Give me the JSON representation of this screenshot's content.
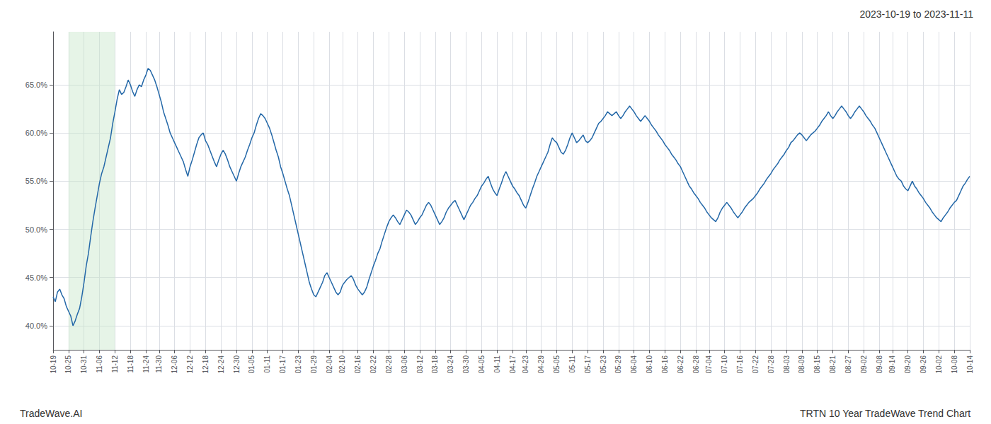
{
  "chart_data": {
    "type": "line",
    "title": "2023-10-19 to 2023-11-11",
    "annotations": [
      "TradeWave.AI",
      "TRTN 10 Year TradeWave Trend Chart"
    ],
    "color": "#2468a8",
    "grid": true,
    "spans": [
      {
        "from": "10-25",
        "to": "11-12",
        "color": "#c8e6c9"
      }
    ],
    "ylim": [
      0.375,
      0.705
    ],
    "yticks": [
      {
        "value": 0.4,
        "label": "40.0%"
      },
      {
        "value": 0.45,
        "label": "45.0%"
      },
      {
        "value": 0.5,
        "label": "50.0%"
      },
      {
        "value": 0.55,
        "label": "55.0%"
      },
      {
        "value": 0.6,
        "label": "60.0%"
      },
      {
        "value": 0.65,
        "label": "65.0%"
      }
    ],
    "categories": [
      "10-19",
      null,
      null,
      null,
      null,
      null,
      null,
      "10-25",
      null,
      null,
      null,
      null,
      null,
      null,
      "10-31",
      null,
      null,
      null,
      null,
      null,
      null,
      "11-06",
      null,
      null,
      null,
      null,
      null,
      null,
      "11-12",
      null,
      null,
      null,
      null,
      null,
      null,
      "11-18",
      null,
      null,
      null,
      null,
      null,
      null,
      "11-24",
      null,
      null,
      null,
      null,
      null,
      "11-30",
      null,
      null,
      null,
      null,
      null,
      null,
      "12-06",
      null,
      null,
      null,
      null,
      null,
      null,
      "12-12",
      null,
      null,
      null,
      null,
      null,
      null,
      "12-18",
      null,
      null,
      null,
      null,
      null,
      null,
      "12-24",
      null,
      null,
      null,
      null,
      null,
      null,
      "12-30",
      null,
      null,
      null,
      null,
      null,
      null,
      "01-05",
      null,
      null,
      null,
      null,
      null,
      null,
      "01-11",
      null,
      null,
      null,
      null,
      null,
      null,
      "01-17",
      null,
      null,
      null,
      null,
      null,
      null,
      "01-23",
      null,
      null,
      null,
      null,
      null,
      null,
      "01-29",
      null,
      null,
      null,
      null,
      null,
      null,
      "02-04",
      null,
      null,
      null,
      null,
      null,
      "02-10",
      null,
      null,
      null,
      null,
      null,
      null,
      "02-16",
      null,
      null,
      null,
      null,
      null,
      null,
      "02-22",
      null,
      null,
      null,
      null,
      null,
      null,
      "02-28",
      null,
      null,
      null,
      null,
      null,
      null,
      "03-06",
      null,
      null,
      null,
      null,
      null,
      null,
      "03-12",
      null,
      null,
      null,
      null,
      null,
      null,
      "03-18",
      null,
      null,
      null,
      null,
      null,
      null,
      "03-24",
      null,
      null,
      null,
      null,
      null,
      null,
      "03-30",
      null,
      null,
      null,
      null,
      null,
      null,
      "04-05",
      null,
      null,
      null,
      null,
      null,
      null,
      "04-11",
      null,
      null,
      null,
      null,
      null,
      null,
      "04-17",
      null,
      null,
      null,
      null,
      null,
      "04-23",
      null,
      null,
      null,
      null,
      null,
      null,
      "04-29",
      null,
      null,
      null,
      null,
      null,
      null,
      "05-05",
      null,
      null,
      null,
      null,
      null,
      null,
      "05-11",
      null,
      null,
      null,
      null,
      null,
      null,
      "05-17",
      null,
      null,
      null,
      null,
      null,
      null,
      "05-23",
      null,
      null,
      null,
      null,
      null,
      null,
      "05-29",
      null,
      null,
      null,
      null,
      null,
      null,
      "06-04",
      null,
      null,
      null,
      null,
      null,
      null,
      "06-10",
      null,
      null,
      null,
      null,
      null,
      null,
      "06-16",
      null,
      null,
      null,
      null,
      null,
      null,
      "06-22",
      null,
      null,
      null,
      null,
      null,
      null,
      "06-28",
      null,
      null,
      null,
      null,
      null,
      "07-04",
      null,
      null,
      null,
      null,
      null,
      null,
      "07-10",
      null,
      null,
      null,
      null,
      null,
      null,
      "07-16",
      null,
      null,
      null,
      null,
      null,
      null,
      "07-22",
      null,
      null,
      null,
      null,
      null,
      null,
      "07-28",
      null,
      null,
      null,
      null,
      null,
      null,
      "08-03",
      null,
      null,
      null,
      null,
      null,
      null,
      "08-09",
      null,
      null,
      null,
      null,
      null,
      null,
      "08-15",
      null,
      null,
      null,
      null,
      null,
      null,
      "08-21",
      null,
      null,
      null,
      null,
      null,
      null,
      "08-27",
      null,
      null,
      null,
      null,
      null,
      null,
      "09-02",
      null,
      null,
      null,
      null,
      null,
      null,
      "09-08",
      null,
      null,
      null,
      null,
      null,
      "09-14",
      null,
      null,
      null,
      null,
      null,
      null,
      "09-20",
      null,
      null,
      null,
      null,
      null,
      null,
      "09-26",
      null,
      null,
      null,
      null,
      null,
      null,
      "10-02",
      null,
      null,
      null,
      null,
      null,
      null,
      "10-08",
      null,
      null,
      null,
      null,
      null,
      null,
      "10-14"
    ],
    "values": [
      0.43,
      0.425,
      0.435,
      0.438,
      0.432,
      0.428,
      0.42,
      0.415,
      0.41,
      0.4,
      0.405,
      0.412,
      0.418,
      0.43,
      0.445,
      0.462,
      0.475,
      0.492,
      0.508,
      0.522,
      0.535,
      0.548,
      0.558,
      0.565,
      0.575,
      0.585,
      0.595,
      0.61,
      0.622,
      0.635,
      0.645,
      0.64,
      0.642,
      0.648,
      0.655,
      0.65,
      0.643,
      0.638,
      0.645,
      0.65,
      0.648,
      0.655,
      0.66,
      0.667,
      0.665,
      0.66,
      0.655,
      0.648,
      0.64,
      0.632,
      0.622,
      0.615,
      0.608,
      0.6,
      0.595,
      0.59,
      0.585,
      0.58,
      0.575,
      0.57,
      0.562,
      0.555,
      0.565,
      0.572,
      0.58,
      0.588,
      0.595,
      0.598,
      0.6,
      0.592,
      0.588,
      0.582,
      0.576,
      0.57,
      0.565,
      0.572,
      0.578,
      0.582,
      0.578,
      0.572,
      0.565,
      0.56,
      0.555,
      0.55,
      0.558,
      0.565,
      0.57,
      0.575,
      0.582,
      0.588,
      0.595,
      0.6,
      0.608,
      0.615,
      0.62,
      0.618,
      0.615,
      0.61,
      0.605,
      0.598,
      0.59,
      0.582,
      0.575,
      0.565,
      0.558,
      0.55,
      0.542,
      0.535,
      0.525,
      0.515,
      0.505,
      0.495,
      0.485,
      0.475,
      0.465,
      0.455,
      0.445,
      0.438,
      0.432,
      0.43,
      0.435,
      0.44,
      0.445,
      0.452,
      0.455,
      0.45,
      0.445,
      0.44,
      0.435,
      0.432,
      0.435,
      0.442,
      0.445,
      0.448,
      0.45,
      0.452,
      0.448,
      0.442,
      0.438,
      0.435,
      0.432,
      0.435,
      0.44,
      0.448,
      0.455,
      0.462,
      0.468,
      0.475,
      0.48,
      0.488,
      0.495,
      0.502,
      0.508,
      0.512,
      0.515,
      0.512,
      0.508,
      0.505,
      0.51,
      0.515,
      0.52,
      0.518,
      0.515,
      0.51,
      0.505,
      0.508,
      0.512,
      0.515,
      0.52,
      0.525,
      0.528,
      0.525,
      0.52,
      0.515,
      0.51,
      0.505,
      0.508,
      0.512,
      0.518,
      0.522,
      0.525,
      0.528,
      0.53,
      0.525,
      0.52,
      0.515,
      0.51,
      0.515,
      0.52,
      0.525,
      0.528,
      0.532,
      0.535,
      0.54,
      0.545,
      0.548,
      0.552,
      0.555,
      0.548,
      0.542,
      0.538,
      0.535,
      0.542,
      0.548,
      0.555,
      0.56,
      0.555,
      0.55,
      0.545,
      0.542,
      0.538,
      0.535,
      0.53,
      0.525,
      0.522,
      0.528,
      0.535,
      0.542,
      0.548,
      0.555,
      0.56,
      0.565,
      0.57,
      0.575,
      0.58,
      0.588,
      0.595,
      0.592,
      0.59,
      0.585,
      0.58,
      0.578,
      0.582,
      0.588,
      0.595,
      0.6,
      0.595,
      0.59,
      0.592,
      0.595,
      0.598,
      0.592,
      0.59,
      0.592,
      0.595,
      0.6,
      0.605,
      0.61,
      0.612,
      0.615,
      0.618,
      0.622,
      0.62,
      0.618,
      0.62,
      0.622,
      0.618,
      0.615,
      0.618,
      0.622,
      0.625,
      0.628,
      0.625,
      0.622,
      0.618,
      0.615,
      0.612,
      0.615,
      0.618,
      0.615,
      0.612,
      0.608,
      0.605,
      0.602,
      0.598,
      0.595,
      0.592,
      0.588,
      0.585,
      0.582,
      0.578,
      0.575,
      0.572,
      0.568,
      0.565,
      0.56,
      0.555,
      0.55,
      0.545,
      0.542,
      0.538,
      0.535,
      0.532,
      0.528,
      0.525,
      0.522,
      0.518,
      0.515,
      0.512,
      0.51,
      0.508,
      0.512,
      0.518,
      0.522,
      0.525,
      0.528,
      0.525,
      0.522,
      0.518,
      0.515,
      0.512,
      0.515,
      0.518,
      0.522,
      0.525,
      0.528,
      0.53,
      0.532,
      0.535,
      0.538,
      0.542,
      0.545,
      0.548,
      0.552,
      0.555,
      0.558,
      0.562,
      0.565,
      0.568,
      0.572,
      0.575,
      0.578,
      0.582,
      0.585,
      0.59,
      0.592,
      0.595,
      0.598,
      0.6,
      0.598,
      0.595,
      0.592,
      0.595,
      0.598,
      0.6,
      0.602,
      0.605,
      0.608,
      0.612,
      0.615,
      0.618,
      0.622,
      0.618,
      0.615,
      0.618,
      0.622,
      0.625,
      0.628,
      0.625,
      0.622,
      0.618,
      0.615,
      0.618,
      0.622,
      0.625,
      0.628,
      0.625,
      0.622,
      0.618,
      0.615,
      0.612,
      0.608,
      0.605,
      0.6,
      0.595,
      0.59,
      0.585,
      0.58,
      0.575,
      0.57,
      0.565,
      0.56,
      0.555,
      0.552,
      0.55,
      0.545,
      0.542,
      0.54,
      0.545,
      0.55,
      0.545,
      0.542,
      0.538,
      0.535,
      0.532,
      0.528,
      0.525,
      0.522,
      0.518,
      0.515,
      0.512,
      0.51,
      0.508,
      0.512,
      0.515,
      0.518,
      0.522,
      0.525,
      0.528,
      0.53,
      0.535,
      0.54,
      0.545,
      0.548,
      0.552,
      0.555
    ]
  }
}
